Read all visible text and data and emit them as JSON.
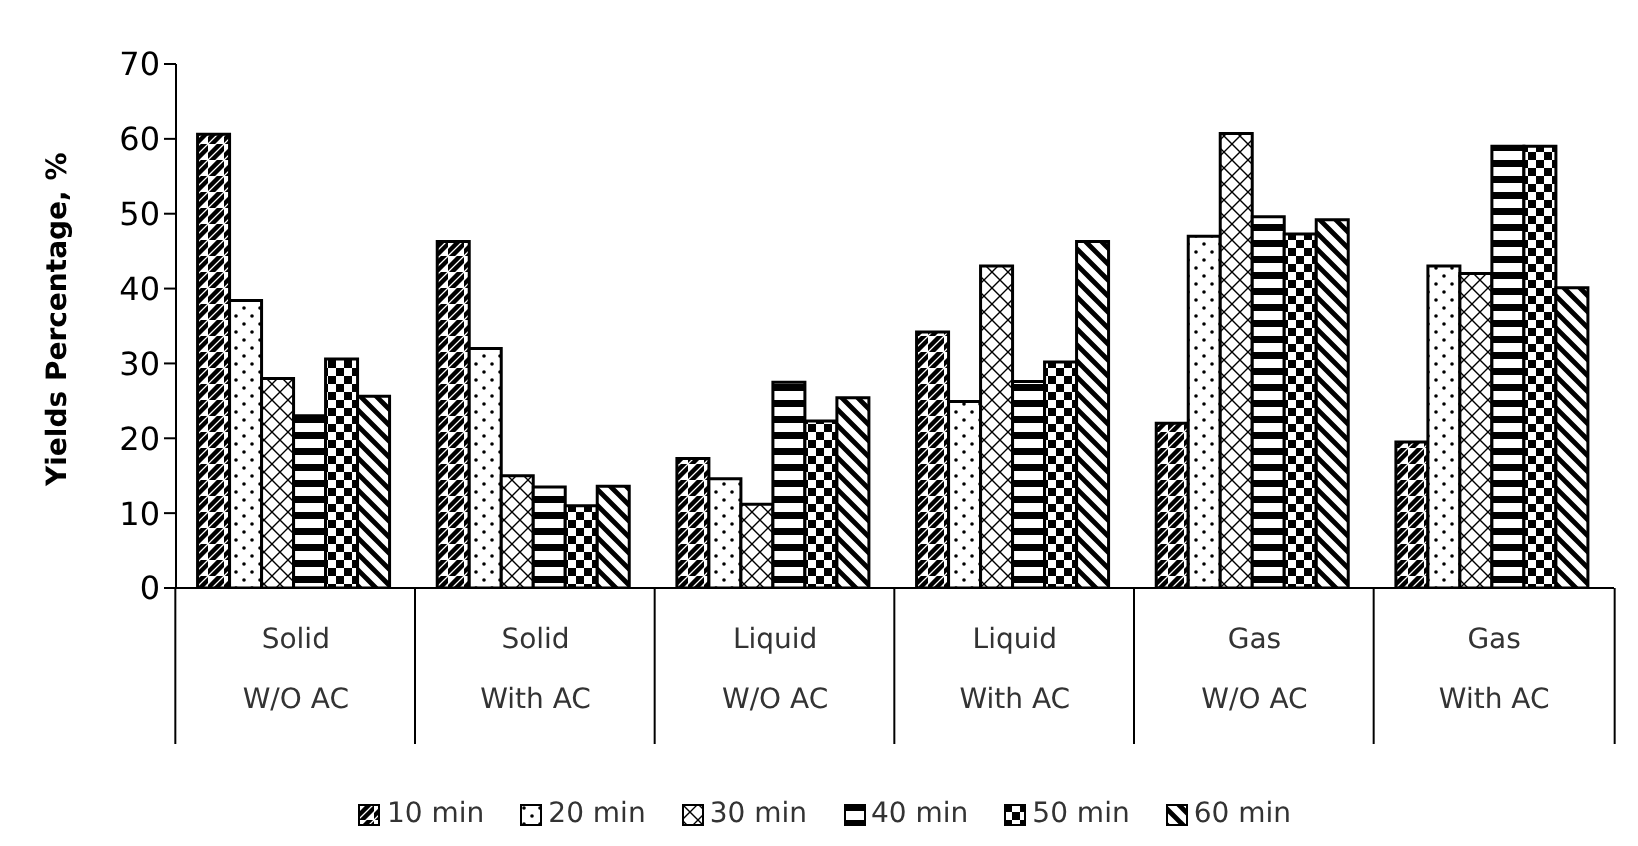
{
  "chart_data": {
    "type": "bar",
    "ylabel": "Yields Percentage, %",
    "categories": [
      "Solid\nW/O AC",
      "Solid\nWith AC",
      "Liquid\nW/O AC",
      "Liquid\nWith AC",
      "Gas\nW/O AC",
      "Gas\nWith AC"
    ],
    "series": [
      {
        "name": "10 min",
        "color": "#000000",
        "values": [
          60.6,
          46.3,
          17.3,
          34.2,
          22,
          19.5
        ]
      },
      {
        "name": "20 min",
        "color": "#000000",
        "values": [
          38.4,
          32,
          14.6,
          24.9,
          47,
          43
        ]
      },
      {
        "name": "30 min",
        "color": "#000000",
        "values": [
          28,
          15,
          11.2,
          43,
          60.7,
          42
        ]
      },
      {
        "name": "40 min",
        "color": "#000000",
        "values": [
          23,
          13.5,
          27.5,
          27.6,
          49.6,
          59
        ]
      },
      {
        "name": "50 min",
        "color": "#000000",
        "values": [
          30.6,
          11,
          22.3,
          30.2,
          47.3,
          59
        ]
      },
      {
        "name": "60 min",
        "color": "#000000",
        "values": [
          25.6,
          13.6,
          25.4,
          46.3,
          49.2,
          40.1
        ]
      }
    ],
    "ylim": [
      0,
      70
    ],
    "yticks": [
      0,
      10,
      20,
      30,
      40,
      50,
      60,
      70
    ],
    "grid": false,
    "legend": "bottom"
  }
}
